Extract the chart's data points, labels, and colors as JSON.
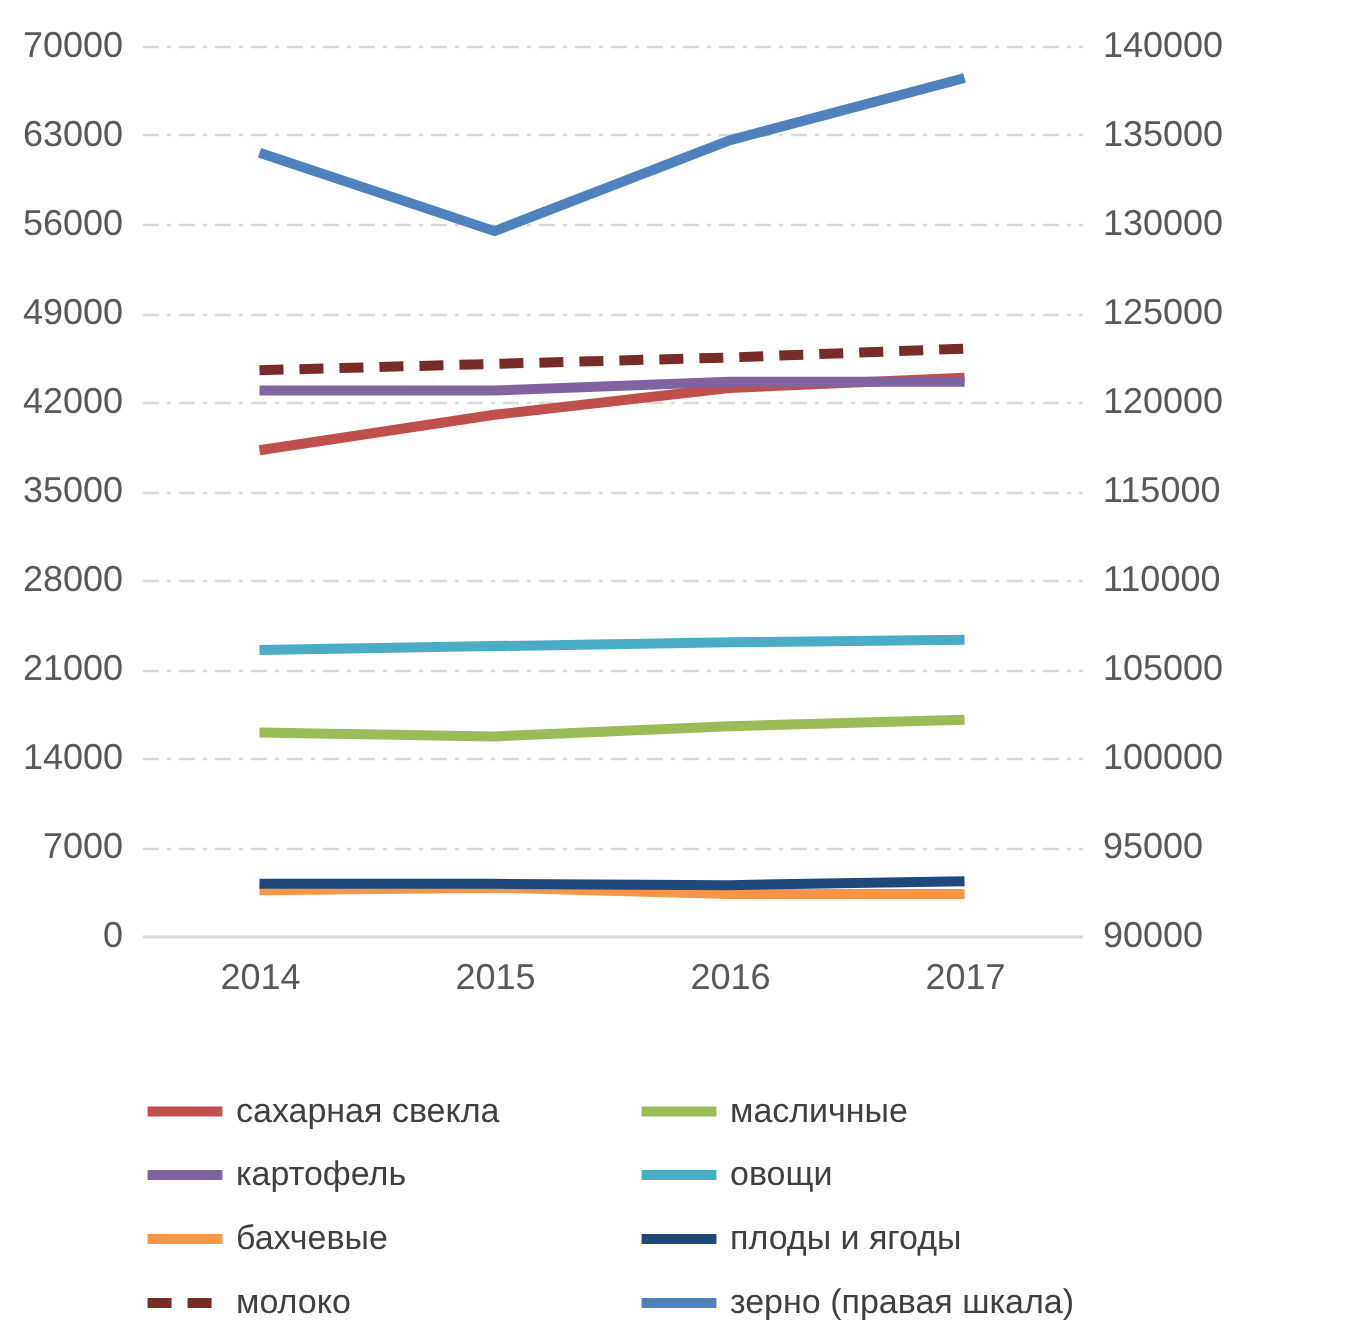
{
  "chart_data": {
    "type": "line",
    "categories": [
      "2014",
      "2015",
      "2016",
      "2017"
    ],
    "ylim": [
      0,
      70000
    ],
    "yticks": [
      0,
      7000,
      14000,
      21000,
      28000,
      35000,
      42000,
      49000,
      56000,
      63000,
      70000
    ],
    "y2lim": [
      90000,
      140000
    ],
    "y2ticks": [
      90000,
      95000,
      100000,
      105000,
      110000,
      115000,
      120000,
      125000,
      130000,
      135000,
      140000
    ],
    "grid": "y",
    "legend": "bottom",
    "marker": "none",
    "series": [
      {
        "name": "сахарная свекла",
        "color": "#c0504d",
        "values": [
          38200,
          41000,
          43100,
          43900
        ]
      },
      {
        "name": "масличные",
        "color": "#9bbb59",
        "values": [
          16000,
          15700,
          16500,
          17000
        ]
      },
      {
        "name": "картофель",
        "color": "#8064a2",
        "values": [
          42900,
          42900,
          43600,
          43600
        ]
      },
      {
        "name": "овощи",
        "color": "#4bacc6",
        "values": [
          22500,
          22800,
          23100,
          23300
        ]
      },
      {
        "name": "бахчевые",
        "color": "#f79646",
        "values": [
          3600,
          3800,
          3300,
          3300
        ]
      },
      {
        "name": "плоды и ягоды",
        "color": "#1f497d",
        "values": [
          4100,
          4100,
          4000,
          4300
        ]
      },
      {
        "name": "молоко",
        "color": "#772c2a",
        "line_style": "dashed",
        "values": [
          44500,
          45000,
          45500,
          46200
        ]
      },
      {
        "name": "зерно (правая шкала)",
        "color": "#4f81bd",
        "axis": "y2",
        "values": [
          134000,
          129600,
          134700,
          138200
        ]
      }
    ]
  }
}
